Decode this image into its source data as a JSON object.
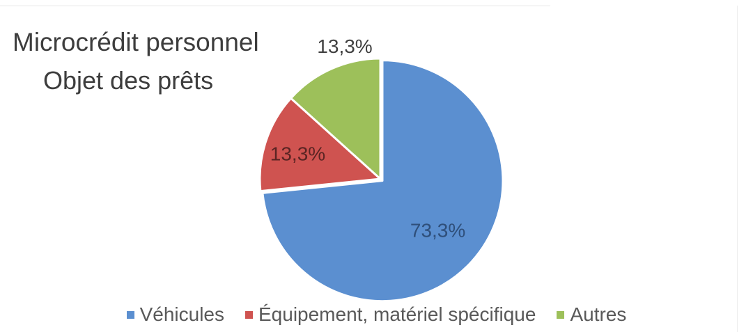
{
  "chart_data": {
    "type": "pie",
    "title": "Microcrédit personnel",
    "subtitle": "Objet des prêts",
    "categories": [
      "Véhicules",
      "Équipement, matériel spécifique",
      "Autres"
    ],
    "values": [
      73.3,
      13.3,
      13.3
    ],
    "data_labels": [
      "73,3%",
      "13,3%",
      "13,3%"
    ],
    "colors": [
      "#5b8fd0",
      "#cf5350",
      "#9dc05a"
    ],
    "label_colors": [
      "#2f4f7a",
      "#5a2423",
      "#404040"
    ],
    "legend_position": "bottom",
    "start_angle_deg": 0,
    "direction": "clockwise",
    "exploded_slice": 0
  }
}
